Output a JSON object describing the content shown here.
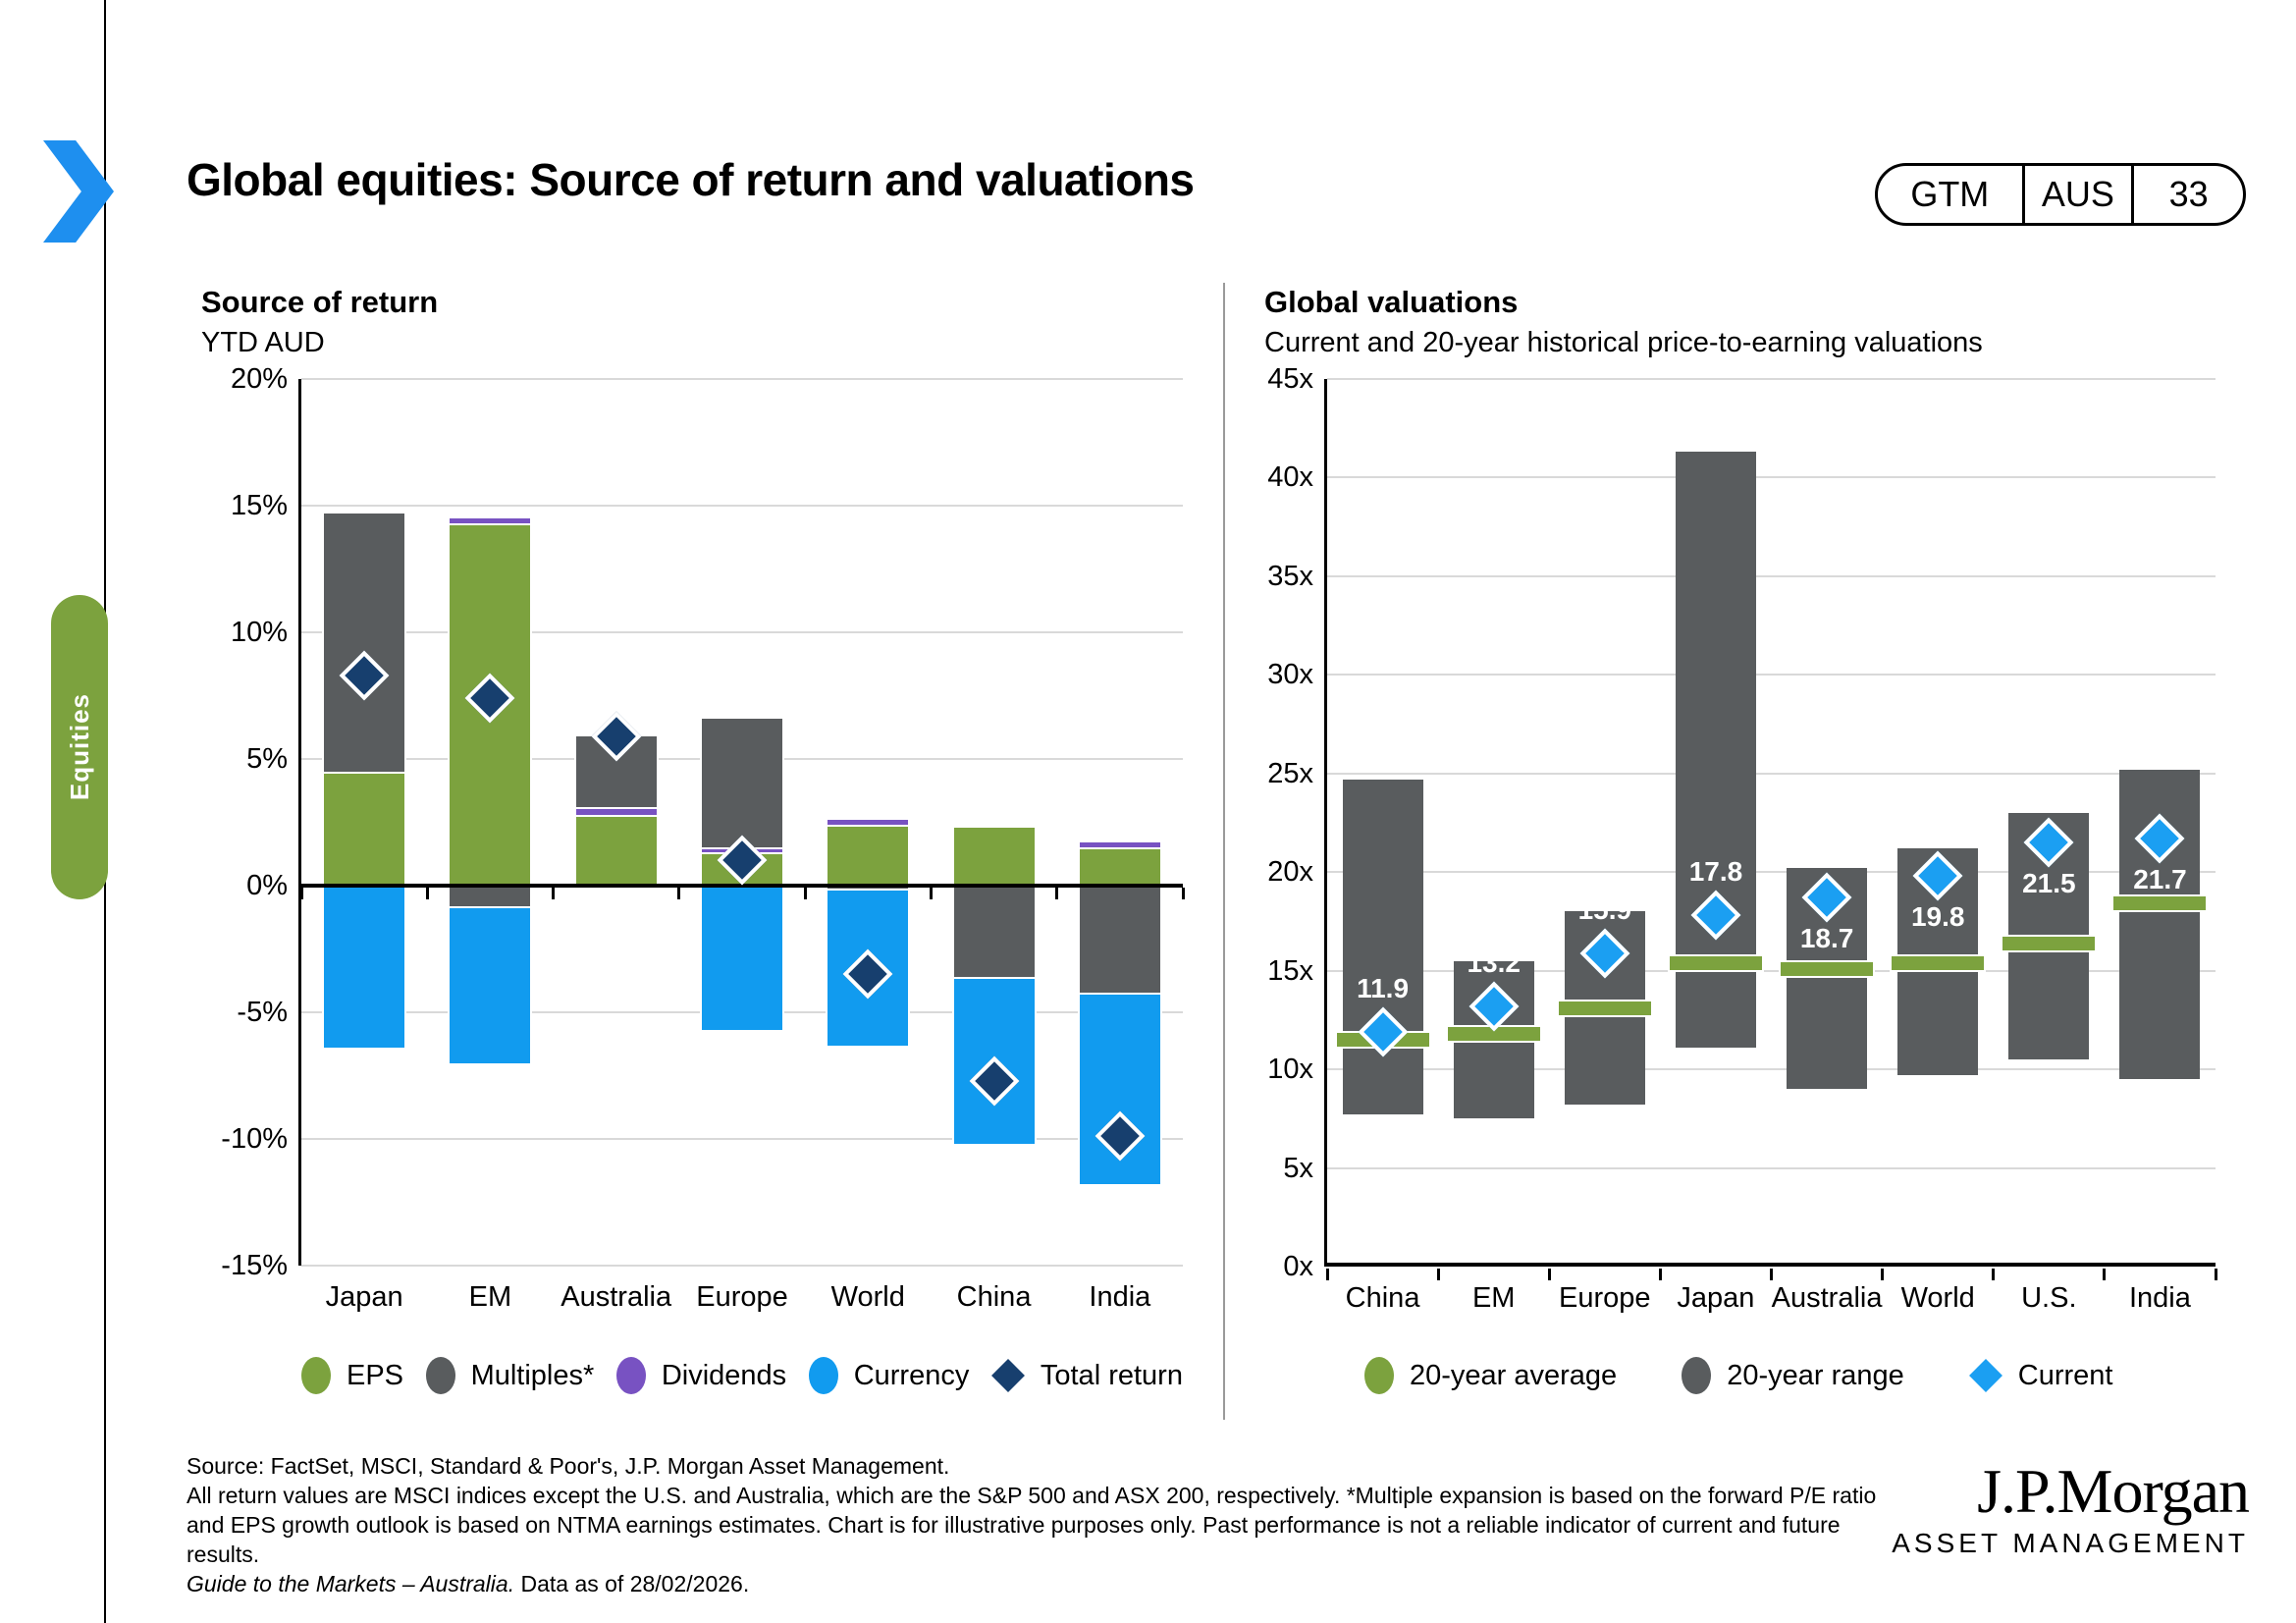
{
  "slide": {
    "title": "Global equities: Source of return and valuations",
    "badge": {
      "program": "GTM",
      "region": "AUS",
      "page": "33"
    },
    "side_tab_label": "Equities",
    "footer": {
      "source": "Source: FactSet, MSCI, Standard & Poor's, J.P. Morgan Asset Management.",
      "note": "All return values are MSCI indices except the U.S. and Australia, which are the S&P 500 and ASX 200, respectively. *Multiple expansion is based on the forward P/E ratio and EPS growth outlook is based on NTMA earnings estimates. Chart is for illustrative purposes only. Past performance is not a reliable indicator of current and future results.",
      "guide_italic": "Guide to the Markets – Australia.",
      "guide_rest": " Data as of 28/02/2026."
    },
    "logo": {
      "brand": "J.P.Morgan",
      "division": "ASSET MANAGEMENT"
    }
  },
  "colors": {
    "eps_green": "#7CA23E",
    "multiples_gray": "#595C5E",
    "dividends_purple": "#7852C2",
    "currency_blue": "#119BEF",
    "total_return_navy": "#173F6E",
    "current_blue": "#1B9FF2",
    "chevron_blue": "#1E8FEF",
    "gridline_gray": "#D9D9D9"
  },
  "chart_data": [
    {
      "type": "bar",
      "variant": "stacked-with-total-marker",
      "title": "Source of return",
      "subtitle": "YTD AUD",
      "categories": [
        "Japan",
        "EM",
        "Australia",
        "Europe",
        "World",
        "China",
        "India"
      ],
      "ylim": [
        -15,
        20
      ],
      "ytick_step": 5,
      "ytick_suffix": "%",
      "grid": true,
      "legend_position": "bottom",
      "series": [
        {
          "name": "EPS",
          "color_key": "eps_green",
          "values": [
            4.5,
            14.3,
            2.8,
            1.3,
            2.4,
            2.3,
            1.5
          ]
        },
        {
          "name": "Dividends",
          "color_key": "dividends_purple",
          "values": [
            0,
            0.2,
            0.3,
            0.2,
            0.2,
            0,
            0.2
          ]
        },
        {
          "name": "Multiples*",
          "color_key": "multiples_gray",
          "values": [
            10.2,
            -0.9,
            2.8,
            5.1,
            -0.2,
            -3.7,
            -4.3
          ]
        },
        {
          "name": "Currency",
          "color_key": "currency_blue",
          "values": [
            -6.4,
            -6.1,
            0,
            -5.7,
            -6.1,
            -6.5,
            -7.5
          ]
        }
      ],
      "total_marker": {
        "name": "Total return",
        "color_key": "total_return_navy",
        "values": [
          8.3,
          7.4,
          5.9,
          1.0,
          -3.5,
          -7.7,
          -9.9
        ]
      },
      "legend": [
        {
          "label": "EPS",
          "marker": "circle",
          "color_key": "eps_green"
        },
        {
          "label": "Multiples*",
          "marker": "circle",
          "color_key": "multiples_gray"
        },
        {
          "label": "Dividends",
          "marker": "circle",
          "color_key": "dividends_purple"
        },
        {
          "label": "Currency",
          "marker": "circle",
          "color_key": "currency_blue"
        },
        {
          "label": "Total return",
          "marker": "diamond",
          "color_key": "total_return_navy"
        }
      ]
    },
    {
      "type": "bar",
      "variant": "floating-range-with-average-and-current",
      "title": "Global valuations",
      "subtitle": "Current and 20-year historical price-to-earning valuations",
      "categories": [
        "China",
        "EM",
        "Europe",
        "Japan",
        "Australia",
        "World",
        "U.S.",
        "India"
      ],
      "ylim": [
        0,
        45
      ],
      "ytick_step": 5,
      "ytick_suffix": "x",
      "grid": true,
      "range_low": [
        7.7,
        7.5,
        8.2,
        11.1,
        9.0,
        9.7,
        10.5,
        9.5
      ],
      "range_high": [
        24.7,
        15.5,
        18.0,
        41.3,
        20.2,
        21.2,
        23.0,
        25.2
      ],
      "average": [
        11.5,
        11.8,
        13.1,
        15.4,
        15.1,
        15.4,
        16.4,
        18.4
      ],
      "current": [
        11.9,
        13.2,
        15.9,
        17.8,
        18.7,
        19.8,
        21.5,
        21.7
      ],
      "current_label_position": [
        "above",
        "above",
        "above",
        "above",
        "below",
        "below",
        "below",
        "below"
      ],
      "legend": [
        {
          "label": "20-year average",
          "marker": "circle",
          "color_key": "eps_green"
        },
        {
          "label": "20-year range",
          "marker": "circle",
          "color_key": "multiples_gray"
        },
        {
          "label": "Current",
          "marker": "diamond",
          "color_key": "current_blue"
        }
      ]
    }
  ]
}
